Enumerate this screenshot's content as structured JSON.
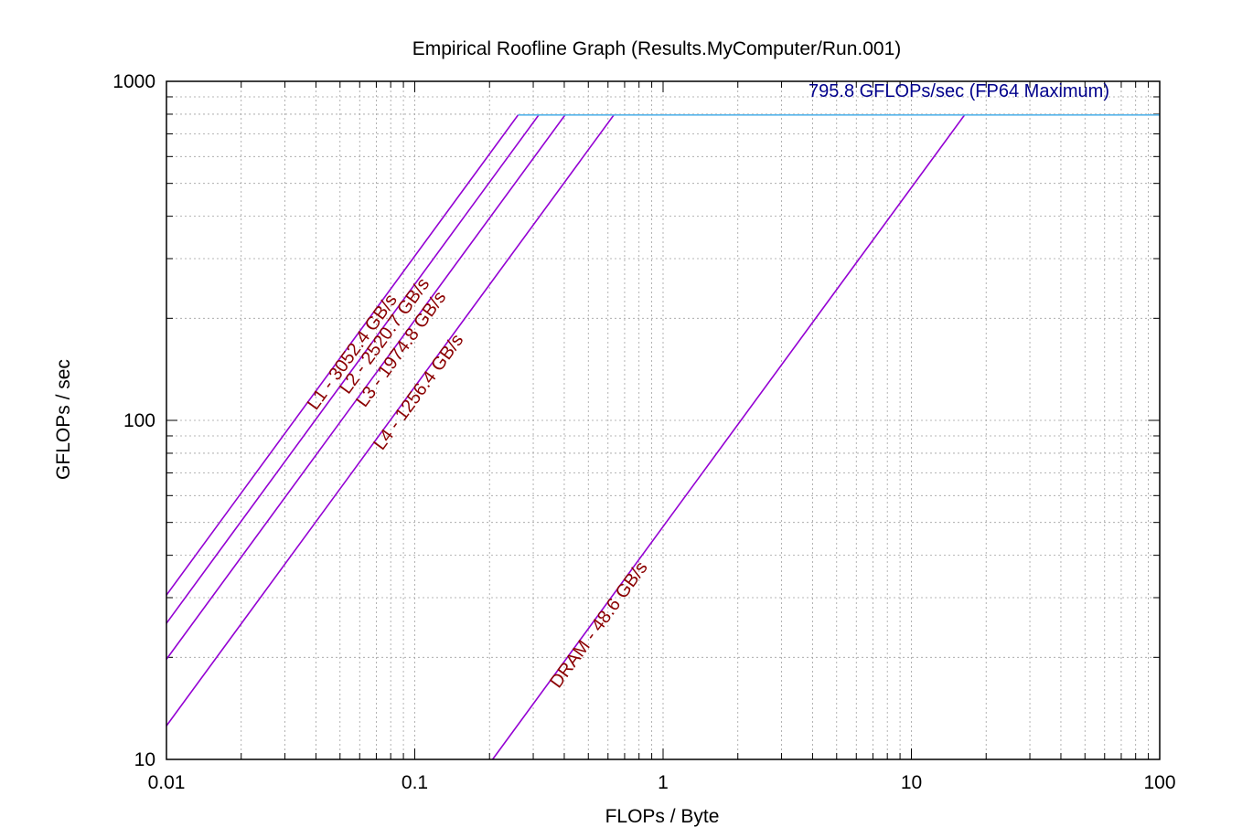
{
  "chart_data": {
    "type": "line",
    "title": "Empirical Roofline Graph (Results.MyComputer/Run.001)",
    "xlabel": "FLOPs / Byte",
    "ylabel": "GFLOPs / sec",
    "xscale": "log",
    "yscale": "log",
    "xlim": [
      0.01,
      100
    ],
    "ylim": [
      10,
      1000
    ],
    "grid": true,
    "x_ticks": [
      "0.01",
      "0.1",
      "1",
      "10",
      "100"
    ],
    "y_ticks": [
      "10",
      "100",
      "1000"
    ],
    "peak": {
      "value": 795.8,
      "label": "795.8 GFLOPs/sec (FP64 Maximum)",
      "color": "#56b4e9"
    },
    "series": [
      {
        "name": "L1",
        "label": "L1 - 3052.4 GB/s",
        "bandwidth": 3052.4,
        "color": "#9400d3"
      },
      {
        "name": "L2",
        "label": "L2 - 2520.7 GB/s",
        "bandwidth": 2520.7,
        "color": "#9400d3"
      },
      {
        "name": "L3",
        "label": "L3 - 1974.8 GB/s",
        "bandwidth": 1974.8,
        "color": "#9400d3"
      },
      {
        "name": "L4",
        "label": "L4 - 1256.4 GB/s",
        "bandwidth": 1256.4,
        "color": "#9400d3"
      },
      {
        "name": "DRAM",
        "label": "DRAM - 48.6 GB/s",
        "bandwidth": 48.6,
        "color": "#9400d3"
      }
    ]
  }
}
